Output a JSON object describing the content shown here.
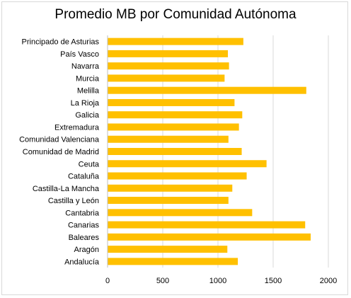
{
  "chart_data": {
    "type": "bar",
    "orientation": "horizontal",
    "title": "Promedio MB por Comunidad Autónoma",
    "xlabel": "",
    "ylabel": "",
    "xlim": [
      0,
      2000
    ],
    "x_ticks": [
      0,
      500,
      1000,
      1500,
      2000
    ],
    "grid": "vertical",
    "legend": "none",
    "bar_color": "#FFC000",
    "categories": [
      "Principado de Asturias",
      "País Vasco",
      "Navarra",
      "Murcia",
      "Melilla",
      "La Rioja",
      "Galicia",
      "Extremadura",
      "Comunidad Valenciana",
      "Comunidad de Madrid",
      "Ceuta",
      "Cataluña",
      "Castilla-La Mancha",
      "Castilla y León",
      "Cantabria",
      "Canarias",
      "Baleares",
      "Aragón",
      "Andalucía"
    ],
    "values": [
      1230,
      1090,
      1100,
      1060,
      1800,
      1150,
      1220,
      1190,
      1095,
      1215,
      1440,
      1260,
      1130,
      1095,
      1310,
      1790,
      1840,
      1085,
      1180
    ]
  }
}
